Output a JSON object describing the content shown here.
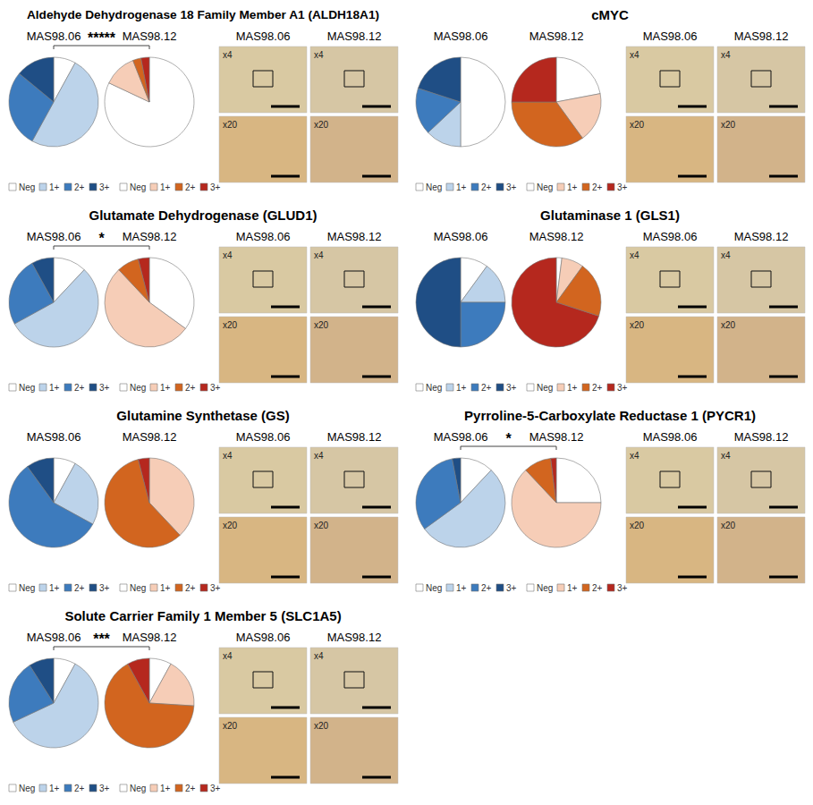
{
  "chart_data": [
    {
      "type": "pie",
      "title": "Aldehyde Dehydrogenase 18 Family Member A1 (ALDH18A1)",
      "categories": [
        "Neg",
        "1+",
        "2+",
        "3+"
      ],
      "series": [
        {
          "name": "MAS98.06",
          "colors": [
            "#ffffff",
            "#bcd3ea",
            "#3d7bbd",
            "#1f4e85"
          ],
          "values": [
            8,
            50,
            28,
            14
          ]
        },
        {
          "name": "MAS98.12",
          "colors": [
            "#ffffff",
            "#f6cdb7",
            "#d2651f",
            "#b5281e"
          ],
          "values": [
            82,
            12,
            3,
            3
          ]
        }
      ],
      "significance": "*****",
      "legend": "bottom",
      "image_columns": [
        "MAS98.06",
        "MAS98.12"
      ],
      "image_rows": [
        "x4",
        "x20"
      ]
    },
    {
      "type": "pie",
      "title": "cMYC",
      "categories": [
        "Neg",
        "1+",
        "2+",
        "3+"
      ],
      "series": [
        {
          "name": "MAS98.06",
          "colors": [
            "#ffffff",
            "#bcd3ea",
            "#3d7bbd",
            "#1f4e85"
          ],
          "values": [
            50,
            13,
            17,
            20
          ]
        },
        {
          "name": "MAS98.12",
          "colors": [
            "#ffffff",
            "#f6cdb7",
            "#d2651f",
            "#b5281e"
          ],
          "values": [
            22,
            18,
            35,
            25
          ]
        }
      ],
      "legend": "bottom",
      "image_columns": [
        "MAS98.06",
        "MAS98.12"
      ],
      "image_rows": [
        "x4",
        "x20"
      ]
    },
    {
      "type": "pie",
      "title": "Glutamate Dehydrogenase (GLUD1)",
      "categories": [
        "Neg",
        "1+",
        "2+",
        "3+"
      ],
      "series": [
        {
          "name": "MAS98.06",
          "colors": [
            "#ffffff",
            "#bcd3ea",
            "#3d7bbd",
            "#1f4e85"
          ],
          "values": [
            12,
            55,
            25,
            8
          ]
        },
        {
          "name": "MAS98.12",
          "colors": [
            "#ffffff",
            "#f6cdb7",
            "#d2651f",
            "#b5281e"
          ],
          "values": [
            35,
            53,
            8,
            4
          ]
        }
      ],
      "significance": "*",
      "legend": "bottom",
      "image_columns": [
        "MAS98.06",
        "MAS98.12"
      ],
      "image_rows": [
        "x4",
        "x20"
      ]
    },
    {
      "type": "pie",
      "title": "Glutaminase 1 (GLS1)",
      "categories": [
        "Neg",
        "1+",
        "2+",
        "3+"
      ],
      "series": [
        {
          "name": "MAS98.06",
          "colors": [
            "#ffffff",
            "#bcd3ea",
            "#3d7bbd",
            "#1f4e85"
          ],
          "values": [
            10,
            15,
            25,
            50
          ]
        },
        {
          "name": "MAS98.12",
          "colors": [
            "#ffffff",
            "#f6cdb7",
            "#d2651f",
            "#b5281e"
          ],
          "values": [
            2,
            8,
            20,
            70
          ]
        }
      ],
      "legend": "bottom",
      "image_columns": [
        "MAS98.06",
        "MAS98.12"
      ],
      "image_rows": [
        "x4",
        "x20"
      ]
    },
    {
      "type": "pie",
      "title": "Glutamine Synthetase (GS)",
      "categories": [
        "Neg",
        "1+",
        "2+",
        "3+"
      ],
      "series": [
        {
          "name": "MAS98.06",
          "colors": [
            "#ffffff",
            "#bcd3ea",
            "#3d7bbd",
            "#1f4e85"
          ],
          "values": [
            8,
            25,
            57,
            10
          ]
        },
        {
          "name": "MAS98.12",
          "colors": [
            "#ffffff",
            "#f6cdb7",
            "#d2651f",
            "#b5281e"
          ],
          "values": [
            0,
            38,
            58,
            4
          ]
        }
      ],
      "legend": "bottom",
      "image_columns": [
        "MAS98.06",
        "MAS98.12"
      ],
      "image_rows": [
        "x4",
        "x20"
      ]
    },
    {
      "type": "pie",
      "title": "Pyrroline-5-Carboxylate Reductase 1 (PYCR1)",
      "categories": [
        "Neg",
        "1+",
        "2+",
        "3+"
      ],
      "series": [
        {
          "name": "MAS98.06",
          "colors": [
            "#ffffff",
            "#bcd3ea",
            "#3d7bbd",
            "#1f4e85"
          ],
          "values": [
            12,
            53,
            32,
            3
          ]
        },
        {
          "name": "MAS98.12",
          "colors": [
            "#ffffff",
            "#f6cdb7",
            "#d2651f",
            "#b5281e"
          ],
          "values": [
            25,
            63,
            10,
            2
          ]
        }
      ],
      "significance": "*",
      "legend": "bottom",
      "image_columns": [
        "MAS98.06",
        "MAS98.12"
      ],
      "image_rows": [
        "x4",
        "x20"
      ]
    },
    {
      "type": "pie",
      "title": "Solute Carrier Family 1 Member 5 (SLC1A5)",
      "categories": [
        "Neg",
        "1+",
        "2+",
        "3+"
      ],
      "series": [
        {
          "name": "MAS98.06",
          "colors": [
            "#ffffff",
            "#bcd3ea",
            "#3d7bbd",
            "#1f4e85"
          ],
          "values": [
            8,
            60,
            23,
            9
          ]
        },
        {
          "name": "MAS98.12",
          "colors": [
            "#ffffff",
            "#f6cdb7",
            "#d2651f",
            "#b5281e"
          ],
          "values": [
            8,
            18,
            66,
            8
          ]
        }
      ],
      "significance": "***",
      "legend": "bottom",
      "image_columns": [
        "MAS98.06",
        "MAS98.12"
      ],
      "image_rows": [
        "x4",
        "x20"
      ]
    }
  ]
}
